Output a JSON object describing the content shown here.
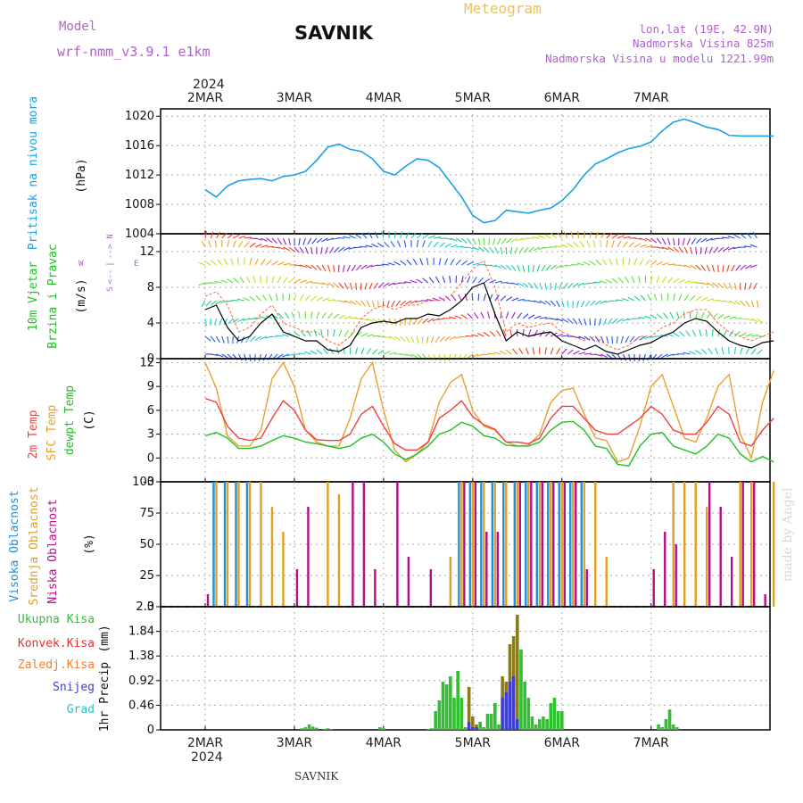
{
  "header": {
    "model_label": "Model",
    "model_name": "wrf-nmm_v3.9.1 e1km",
    "station": "SAVNIK",
    "product": "Meteogram",
    "lonlat": "lon,lat (19E, 42.9N)",
    "altitude": "Nadmorska Visina 825m",
    "model_altitude": "Nadmorska Visina u modelu 1221.99m",
    "footer_station": "SAVNIK",
    "watermark": "made by Angel"
  },
  "time_axis": {
    "year": "2024",
    "days": [
      "2MAR",
      "3MAR",
      "4MAR",
      "5MAR",
      "6MAR",
      "7MAR"
    ]
  },
  "colors": {
    "pressure": "#1aa0e8",
    "temp2m": "#f04040",
    "sfc_temp": "#e8a030",
    "dewpoint": "#20c020",
    "high_cloud": "#1e90e0",
    "mid_cloud": "#e0a020",
    "low_cloud": "#b0108a",
    "total_precip": "#30c030",
    "conv_precip": "#e83030",
    "frz_precip": "#f08030",
    "snow": "#4040d0",
    "graupel": "#30c0c0",
    "mixed_precip": "#8a7a20",
    "wind_low": "#3040e0",
    "wind_mid": "#20c8c8",
    "wind_high": "#a020c0"
  },
  "chart_data": [
    {
      "type": "line",
      "panel": "pressure",
      "ylabel_main": "Pritisak na nivou mora",
      "ylabel_unit": "(hPa)",
      "ylim": [
        1004,
        1021
      ],
      "yticks": [
        "1020",
        "1016",
        "1012",
        "1008",
        "1004"
      ],
      "grid": true,
      "x_hours": [
        0,
        3,
        6,
        9,
        12,
        15,
        18,
        21,
        24,
        27,
        30,
        33,
        36,
        39,
        42,
        45,
        48,
        51,
        54,
        57,
        60,
        63,
        66,
        69,
        72,
        75,
        78,
        81,
        84,
        87,
        90,
        93,
        96,
        99,
        102,
        105,
        108,
        111,
        114,
        117,
        120,
        123,
        126,
        129,
        132,
        135,
        138,
        141,
        144,
        147,
        150,
        153
      ],
      "series": [
        {
          "name": "Pritisak na nivou mora",
          "values": [
            1010,
            1009,
            1010.5,
            1011.2,
            1011.4,
            1011.5,
            1011.2,
            1011.8,
            1012,
            1012.5,
            1014,
            1015.8,
            1016.2,
            1015.5,
            1015.2,
            1014.2,
            1012.5,
            1012,
            1013.2,
            1014.2,
            1014,
            1013,
            1011,
            1009,
            1006.5,
            1005.5,
            1005.8,
            1007.2,
            1007,
            1006.8,
            1007.2,
            1007.5,
            1008.5,
            1010,
            1012,
            1013.5,
            1014.2,
            1015,
            1015.6,
            1015.9,
            1016.5,
            1018,
            1019.2,
            1019.6,
            1019.1,
            1018.5,
            1018.2,
            1017.4,
            1017.3,
            1017.3,
            1017.3,
            1017.3
          ]
        }
      ]
    },
    {
      "type": "line",
      "panel": "wind",
      "ylabel_main": "10m Vjetar",
      "ylabel_sub": "Brzina i Pravac",
      "ylabel_unit": "(m/s)",
      "compass": {
        "n": "N",
        "s": "S",
        "e": "E",
        "w": "W",
        "glyph": "-->",
        "glyph_rev": "<--",
        "bar": "|"
      },
      "ylim": [
        0,
        14
      ],
      "yticks": [
        "12",
        "8",
        "4",
        "0"
      ],
      "grid": true,
      "x_hours": [
        0,
        3,
        6,
        9,
        12,
        15,
        18,
        21,
        24,
        27,
        30,
        33,
        36,
        39,
        42,
        45,
        48,
        51,
        54,
        57,
        60,
        63,
        66,
        69,
        72,
        75,
        78,
        81,
        84,
        87,
        90,
        93,
        96,
        99,
        102,
        105,
        108,
        111,
        114,
        117,
        120,
        123,
        126,
        129,
        132,
        135,
        138,
        141,
        144,
        147,
        150,
        153
      ],
      "series": [
        {
          "name": "10m brzina",
          "values": [
            5.5,
            6,
            3.5,
            2,
            2.5,
            4,
            5,
            3,
            2.5,
            2,
            2,
            1,
            0.8,
            1.5,
            3.5,
            4,
            4.2,
            4,
            4.5,
            4.5,
            5,
            4.8,
            5.5,
            6.5,
            8,
            8.5,
            5,
            2,
            3,
            2.5,
            2.8,
            3,
            2,
            1.5,
            1,
            1.5,
            0.8,
            0.5,
            1,
            1.5,
            1.8,
            2.5,
            3,
            4,
            4.5,
            4.2,
            3,
            2,
            1.5,
            1.2,
            1.8,
            2
          ]
        },
        {
          "name": "udari",
          "values": [
            7,
            7.5,
            6,
            3,
            3.5,
            5,
            6,
            4,
            3.5,
            3,
            3,
            2,
            1.5,
            2.5,
            4.5,
            5.5,
            6,
            5.5,
            6,
            6,
            6.5,
            6.5,
            7,
            8.5,
            10,
            11,
            8,
            3,
            4,
            3.5,
            3.8,
            4,
            3,
            2.5,
            2,
            2.5,
            1.5,
            1,
            1.5,
            2.5,
            2.5,
            3.5,
            4,
            5,
            5.5,
            5.5,
            4,
            3,
            2.5,
            2,
            2.5,
            3
          ]
        }
      ]
    },
    {
      "type": "line",
      "panel": "temperature",
      "ylabel_main": "2m Temp",
      "ylabel_sub": "SFC Temp",
      "ylabel_sub2": "dewpt Temp",
      "ylabel_unit": "(C)",
      "ylim": [
        -3,
        12.5
      ],
      "yticks": [
        "12",
        "9",
        "6",
        "3",
        "0",
        "-3"
      ],
      "grid": true,
      "x_hours": [
        0,
        3,
        6,
        9,
        12,
        15,
        18,
        21,
        24,
        27,
        30,
        33,
        36,
        39,
        42,
        45,
        48,
        51,
        54,
        57,
        60,
        63,
        66,
        69,
        72,
        75,
        78,
        81,
        84,
        87,
        90,
        93,
        96,
        99,
        102,
        105,
        108,
        111,
        114,
        117,
        120,
        123,
        126,
        129,
        132,
        135,
        138,
        141,
        144,
        147,
        150,
        153
      ],
      "series": [
        {
          "name": "2m Temp",
          "values": [
            7.5,
            7,
            4,
            2.5,
            2.2,
            2.5,
            5,
            7.2,
            6,
            3.5,
            2.3,
            2.2,
            2.2,
            3,
            5.5,
            6.5,
            4,
            1.8,
            1,
            1,
            2,
            5,
            6,
            7.2,
            5.2,
            4.2,
            3.6,
            2,
            2,
            1.8,
            2.5,
            5,
            6.5,
            6.5,
            5,
            3.5,
            3,
            3,
            4,
            5,
            6.5,
            5.5,
            3.5,
            3,
            3,
            4.5,
            6.5,
            5.5,
            2,
            1.5,
            3.5,
            5
          ]
        },
        {
          "name": "SFC Temp",
          "values": [
            12,
            8.8,
            2.8,
            1.5,
            1.5,
            3.5,
            10,
            12,
            9,
            3.5,
            2,
            1.5,
            1.5,
            5,
            10,
            12,
            6,
            1,
            -0.5,
            0.5,
            2,
            7,
            9.5,
            10.5,
            6,
            4,
            3.5,
            2,
            1.5,
            1.6,
            3,
            7,
            8.5,
            8.8,
            5.5,
            2.5,
            2.2,
            -0.5,
            0,
            4,
            9,
            10.5,
            6.5,
            2.5,
            2,
            5,
            9,
            10.5,
            3,
            0,
            7,
            11
          ]
        },
        {
          "name": "dewpt Temp",
          "values": [
            2.8,
            3.2,
            2.5,
            1.2,
            1.2,
            1.5,
            2.2,
            2.8,
            2.5,
            2,
            1.8,
            1.5,
            1.2,
            1.5,
            2.5,
            3,
            2,
            0.5,
            -0.2,
            0.5,
            1.5,
            3,
            3.5,
            4.5,
            4,
            2.8,
            2.5,
            1.6,
            1.5,
            1.5,
            2,
            3.5,
            4.5,
            4.6,
            3.5,
            1.5,
            1.2,
            -0.8,
            -1,
            1.5,
            3,
            3.2,
            1.5,
            1,
            0.5,
            1.5,
            3,
            2.5,
            0.5,
            -0.5,
            0.2,
            -0.5
          ]
        }
      ]
    },
    {
      "type": "bar",
      "panel": "clouds",
      "ylabel_main": "Visoka Oblacnost",
      "ylabel_sub": "Srednja Oblacnost",
      "ylabel_sub2": "Niska Oblacnost",
      "ylabel_unit": "(%)",
      "ylim": [
        0,
        100
      ],
      "yticks": [
        "100",
        "75",
        "50",
        "25",
        "0"
      ],
      "grid": true,
      "x_hours": [
        0,
        3,
        6,
        9,
        12,
        15,
        18,
        21,
        24,
        27,
        30,
        33,
        36,
        39,
        42,
        45,
        48,
        51,
        54,
        57,
        60,
        63,
        66,
        69,
        72,
        75,
        78,
        81,
        84,
        87,
        90,
        93,
        96,
        99,
        102,
        105,
        108,
        111,
        114,
        117,
        120,
        123,
        126,
        129,
        132,
        135,
        138,
        141,
        144,
        147,
        150,
        153
      ],
      "series": [
        {
          "name": "Visoka Oblacnost",
          "values": [
            0,
            100,
            100,
            100,
            100,
            0,
            0,
            0,
            0,
            0,
            0,
            0,
            0,
            0,
            0,
            0,
            0,
            0,
            0,
            0,
            0,
            0,
            0,
            100,
            100,
            100,
            100,
            100,
            100,
            100,
            100,
            100,
            100,
            100,
            100,
            0,
            0,
            0,
            0,
            0,
            0,
            0,
            0,
            0,
            0,
            0,
            0,
            0,
            0,
            0,
            0,
            0
          ]
        },
        {
          "name": "Srednja Oblacnost",
          "values": [
            0,
            100,
            100,
            100,
            100,
            100,
            80,
            60,
            0,
            0,
            0,
            100,
            90,
            0,
            0,
            0,
            0,
            0,
            0,
            0,
            0,
            0,
            40,
            100,
            100,
            100,
            100,
            100,
            100,
            100,
            100,
            100,
            100,
            100,
            100,
            100,
            40,
            0,
            0,
            0,
            0,
            0,
            100,
            100,
            100,
            80,
            0,
            0,
            100,
            100,
            0,
            100
          ]
        },
        {
          "name": "Niska Oblacnost",
          "values": [
            10,
            0,
            0,
            0,
            0,
            0,
            0,
            0,
            30,
            80,
            0,
            0,
            0,
            100,
            100,
            30,
            0,
            100,
            40,
            0,
            30,
            0,
            0,
            100,
            100,
            60,
            60,
            0,
            100,
            100,
            100,
            100,
            100,
            100,
            30,
            0,
            0,
            0,
            0,
            0,
            30,
            60,
            50,
            0,
            0,
            100,
            80,
            40,
            100,
            100,
            10,
            0
          ]
        }
      ]
    },
    {
      "type": "bar",
      "panel": "precip",
      "ylabel_main": "1hr Precip",
      "ylabel_unit": "(mm)",
      "legend": [
        "Ukupna Kisa",
        "Konvek.Kisa",
        "Zaledj.Kisa",
        "Snijeg",
        "Grad"
      ],
      "ylim": [
        0,
        2.3
      ],
      "yticks": [
        "2.3",
        "1.84",
        "1.38",
        "0.92",
        "0.46",
        "0"
      ],
      "grid": true,
      "x_hours": [
        26,
        27,
        28,
        29,
        30,
        31,
        32,
        33,
        34,
        47,
        48,
        60,
        61,
        62,
        63,
        64,
        65,
        66,
        67,
        68,
        69,
        70,
        71,
        72,
        73,
        74,
        75,
        76,
        77,
        78,
        79,
        80,
        81,
        82,
        83,
        84,
        85,
        86,
        87,
        88,
        89,
        90,
        91,
        92,
        93,
        94,
        95,
        96,
        122,
        123,
        124,
        125,
        126,
        127
      ],
      "series": [
        {
          "name": "Ukupna Kisa",
          "values": [
            0.03,
            0.05,
            0.1,
            0.06,
            0.04,
            0,
            0.02,
            0.03,
            0.01,
            0.05,
            0.03,
            0.02,
            0.03,
            0.35,
            0.55,
            0.9,
            0.85,
            1,
            0.6,
            1.1,
            0.6,
            0.05,
            0.8,
            0.25,
            0.1,
            0.15,
            0.05,
            0.3,
            0.3,
            0.5,
            0.1,
            1,
            0.9,
            1.6,
            1.75,
            2.15,
            1.5,
            0.9,
            0.6,
            0.25,
            0.1,
            0.2,
            0.25,
            0.2,
            0.5,
            0.6,
            0.35,
            0.35,
            0.1,
            0.05,
            0.2,
            0.38,
            0.1,
            0.05
          ]
        },
        {
          "name": "Snijeg",
          "values": [
            0,
            0,
            0,
            0,
            0,
            0,
            0,
            0,
            0,
            0,
            0,
            0,
            0,
            0,
            0,
            0,
            0,
            0,
            0,
            0,
            0,
            0,
            0.15,
            0.05,
            0.05,
            0,
            0,
            0,
            0,
            0,
            0,
            0.6,
            0.7,
            0.9,
            1,
            0.2,
            0,
            0,
            0,
            0,
            0,
            0,
            0,
            0,
            0,
            0,
            0,
            0,
            0,
            0,
            0,
            0,
            0,
            0
          ]
        }
      ]
    }
  ]
}
